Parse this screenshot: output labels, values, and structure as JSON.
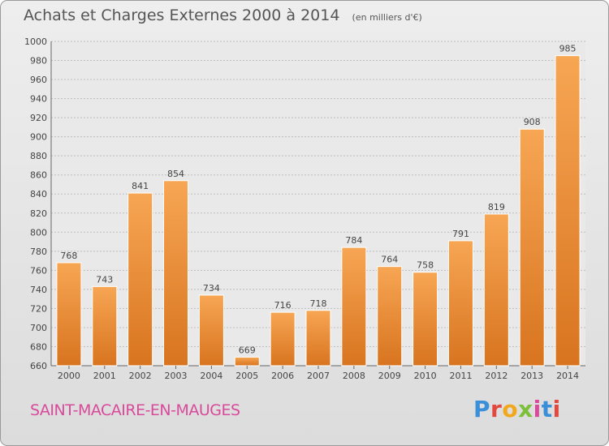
{
  "header": {
    "title": "Achats et Charges Externes 2000 à 2014",
    "unit": "(en milliers d'€)"
  },
  "footer": {
    "city": "SAINT-MACAIRE-EN-MAUGES",
    "logo_text": "Proxiti"
  },
  "colors": {
    "bar_light": "#f7a654",
    "bar_dark": "#d8741f",
    "grid": "#bdbdbd",
    "text": "#444444",
    "city": "#d94a9b"
  },
  "chart_data": {
    "type": "bar",
    "title": "Achats et Charges Externes 2000 à 2014",
    "subtitle": "(en milliers d'€)",
    "categories": [
      "2000",
      "2001",
      "2002",
      "2003",
      "2004",
      "2005",
      "2006",
      "2007",
      "2008",
      "2009",
      "2010",
      "2011",
      "2012",
      "2013",
      "2014"
    ],
    "values": [
      768,
      743,
      841,
      854,
      734,
      669,
      716,
      718,
      784,
      764,
      758,
      791,
      819,
      908,
      985
    ],
    "ylim": [
      660,
      1000
    ],
    "yticks": [
      660,
      680,
      700,
      720,
      740,
      760,
      780,
      800,
      820,
      840,
      860,
      880,
      900,
      920,
      940,
      960,
      980,
      1000
    ],
    "grid": true,
    "data_labels": true
  }
}
